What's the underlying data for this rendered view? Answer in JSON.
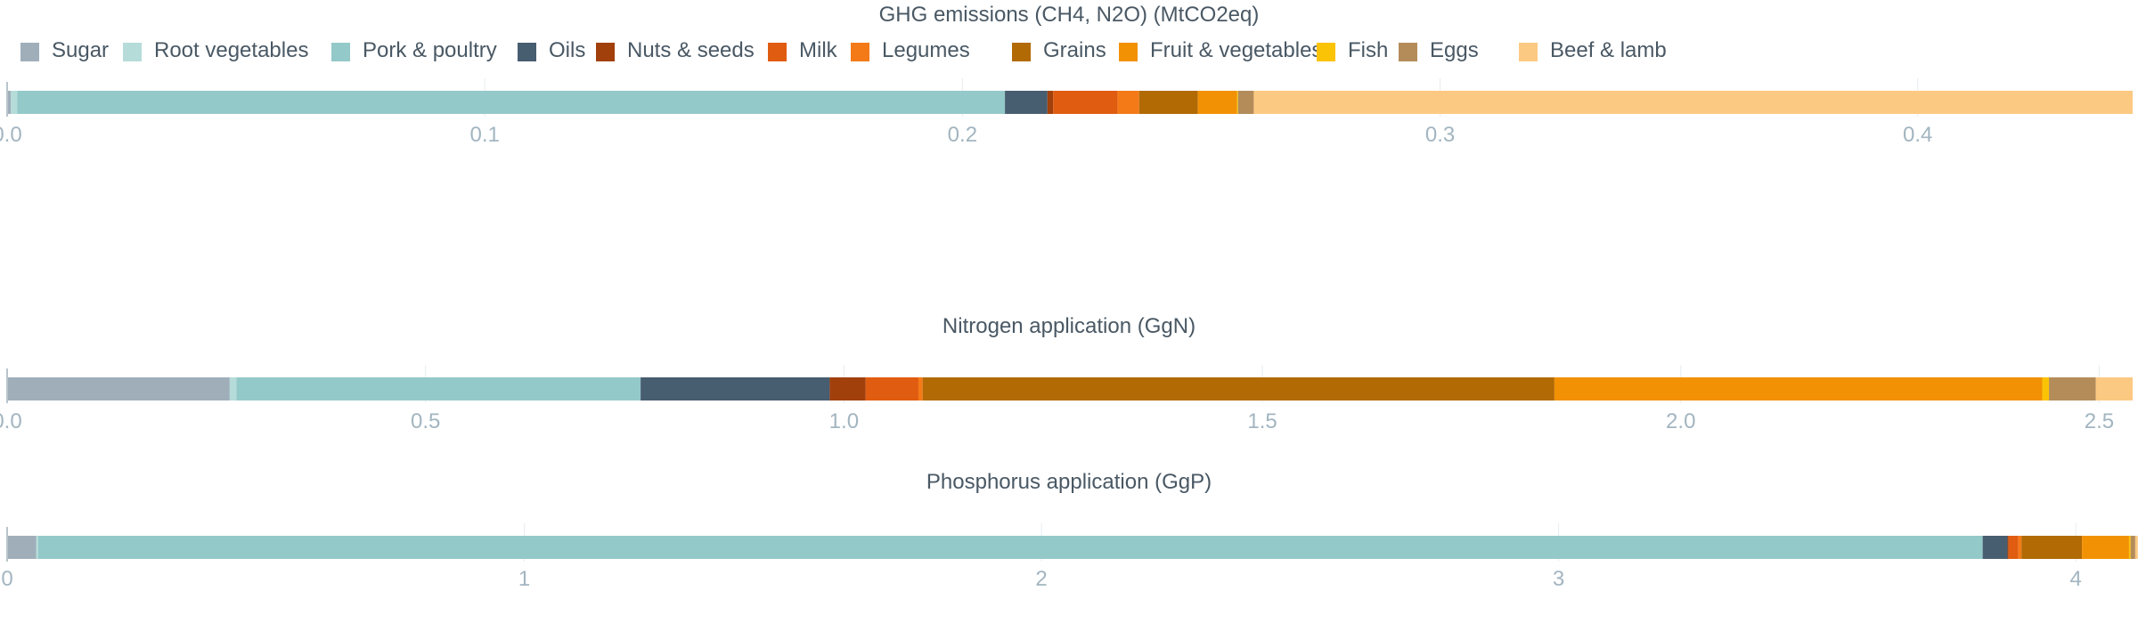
{
  "legend": {
    "items": [
      {
        "name": "Sugar",
        "color": "#a0aeba"
      },
      {
        "name": "Root vegetables",
        "color": "#b5dcd8"
      },
      {
        "name": "Pork & poultry",
        "color": "#93c9c8"
      },
      {
        "name": "Oils",
        "color": "#475d70"
      },
      {
        "name": "Nuts & seeds",
        "color": "#a2400c"
      },
      {
        "name": "Milk",
        "color": "#e05c10"
      },
      {
        "name": "Legumes",
        "color": "#f47a18"
      },
      {
        "name": "Grains",
        "color": "#b26a04"
      },
      {
        "name": "Fruit & vegetables",
        "color": "#f29103"
      },
      {
        "name": "Fish",
        "color": "#fbc306"
      },
      {
        "name": "Eggs",
        "color": "#b48c5a"
      },
      {
        "name": "Beef & lamb",
        "color": "#fcc982"
      }
    ]
  },
  "colors": {
    "title_text": "#495864",
    "tick_text": "#a2b5c0",
    "grid": "#e7ecef",
    "axis": "#b9c5cc"
  },
  "chart_data": [
    {
      "type": "bar",
      "orientation": "horizontal",
      "stacked": true,
      "title": "GHG emissions (CH4, N2O) (MtCO2eq)",
      "xlim": [
        0,
        0.445
      ],
      "ticks": [
        0,
        0.1,
        0.2,
        0.3,
        0.4
      ],
      "tick_labels": [
        "0.0",
        "0.1",
        "0.2",
        "0.3",
        "0.4"
      ],
      "grid": true,
      "series": [
        {
          "name": "Sugar",
          "value": 0.0008
        },
        {
          "name": "Root vegetables",
          "value": 0.0013
        },
        {
          "name": "Pork & poultry",
          "value": 0.2068
        },
        {
          "name": "Oils",
          "value": 0.0089
        },
        {
          "name": "Nuts & seeds",
          "value": 0.0012
        },
        {
          "name": "Milk",
          "value": 0.0135
        },
        {
          "name": "Legumes",
          "value": 0.0045
        },
        {
          "name": "Grains",
          "value": 0.0123
        },
        {
          "name": "Fruit & vegetables",
          "value": 0.0082
        },
        {
          "name": "Fish",
          "value": 0.0002
        },
        {
          "name": "Eggs",
          "value": 0.0033
        },
        {
          "name": "Beef & lamb",
          "value": 0.184
        }
      ]
    },
    {
      "type": "bar",
      "orientation": "horizontal",
      "stacked": true,
      "title": "Nitrogen application (GgN)",
      "xlim": [
        0,
        2.54
      ],
      "ticks": [
        0,
        0.5,
        1,
        1.5,
        2,
        2.5
      ],
      "tick_labels": [
        "0.0",
        "0.5",
        "1.0",
        "1.5",
        "2.0",
        "2.5"
      ],
      "grid": true,
      "series": [
        {
          "name": "Sugar",
          "value": 0.266
        },
        {
          "name": "Root vegetables",
          "value": 0.008
        },
        {
          "name": "Pork & poultry",
          "value": 0.483
        },
        {
          "name": "Oils",
          "value": 0.226
        },
        {
          "name": "Nuts & seeds",
          "value": 0.043
        },
        {
          "name": "Milk",
          "value": 0.063
        },
        {
          "name": "Legumes",
          "value": 0.005
        },
        {
          "name": "Grains",
          "value": 0.755
        },
        {
          "name": "Fruit & vegetables",
          "value": 0.583
        },
        {
          "name": "Fish",
          "value": 0.008
        },
        {
          "name": "Eggs",
          "value": 0.056
        },
        {
          "name": "Beef & lamb",
          "value": 0.044
        }
      ]
    },
    {
      "type": "bar",
      "orientation": "horizontal",
      "stacked": true,
      "title": "Phosphorus application (GgP)",
      "xlim": [
        0,
        4.11
      ],
      "ticks": [
        0,
        1,
        2,
        3,
        4
      ],
      "tick_labels": [
        "0",
        "1",
        "2",
        "3",
        "4"
      ],
      "grid": true,
      "series": [
        {
          "name": "Sugar",
          "value": 0.056
        },
        {
          "name": "Root vegetables",
          "value": 0.004
        },
        {
          "name": "Pork & poultry",
          "value": 3.76
        },
        {
          "name": "Oils",
          "value": 0.048
        },
        {
          "name": "Nuts & seeds",
          "value": 0.002
        },
        {
          "name": "Milk",
          "value": 0.019
        },
        {
          "name": "Legumes",
          "value": 0.006
        },
        {
          "name": "Grains",
          "value": 0.117
        },
        {
          "name": "Fruit & vegetables",
          "value": 0.091
        },
        {
          "name": "Fish",
          "value": 0.003
        },
        {
          "name": "Eggs",
          "value": 0.009
        },
        {
          "name": "Beef & lamb",
          "value": 0.005
        }
      ]
    }
  ]
}
